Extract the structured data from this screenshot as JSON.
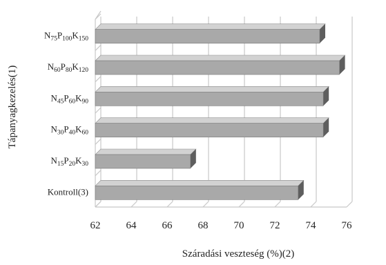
{
  "chart_data": {
    "type": "bar",
    "orientation": "horizontal",
    "style": "3d",
    "title": "",
    "xlabel": "Száradási veszteség (%)(2)",
    "ylabel": "Tápanyagkezelés(1)",
    "xlim": [
      62,
      76
    ],
    "xticks": [
      "62",
      "64",
      "66",
      "68",
      "70",
      "72",
      "74",
      "76"
    ],
    "categories": [
      [
        {
          "t": "N"
        },
        {
          "t": "75",
          "sub": true
        },
        {
          "t": "P"
        },
        {
          "t": "100",
          "sub": true
        },
        {
          "t": "K"
        },
        {
          "t": "150",
          "sub": true
        }
      ],
      [
        {
          "t": "N"
        },
        {
          "t": "60",
          "sub": true
        },
        {
          "t": "P"
        },
        {
          "t": "80",
          "sub": true
        },
        {
          "t": "K"
        },
        {
          "t": "120",
          "sub": true
        }
      ],
      [
        {
          "t": "N"
        },
        {
          "t": "45",
          "sub": true
        },
        {
          "t": "P"
        },
        {
          "t": "60",
          "sub": true
        },
        {
          "t": "K"
        },
        {
          "t": "90",
          "sub": true
        }
      ],
      [
        {
          "t": "N"
        },
        {
          "t": "30",
          "sub": true
        },
        {
          "t": "P"
        },
        {
          "t": "40",
          "sub": true
        },
        {
          "t": "K"
        },
        {
          "t": "60",
          "sub": true
        }
      ],
      [
        {
          "t": "N"
        },
        {
          "t": "15",
          "sub": true
        },
        {
          "t": "P"
        },
        {
          "t": "20",
          "sub": true
        },
        {
          "t": "K"
        },
        {
          "t": "30",
          "sub": true
        }
      ],
      [
        {
          "t": "Kontroll(3)"
        }
      ]
    ],
    "values": [
      74.5,
      75.6,
      74.7,
      74.7,
      67.3,
      73.3
    ],
    "grid": true,
    "legend": "none",
    "colors": {
      "bar_front": "#a9a9a9",
      "bar_top": "#d2d2d2",
      "bar_side": "#5e5e5e",
      "grid": "#c8c8c8"
    }
  }
}
